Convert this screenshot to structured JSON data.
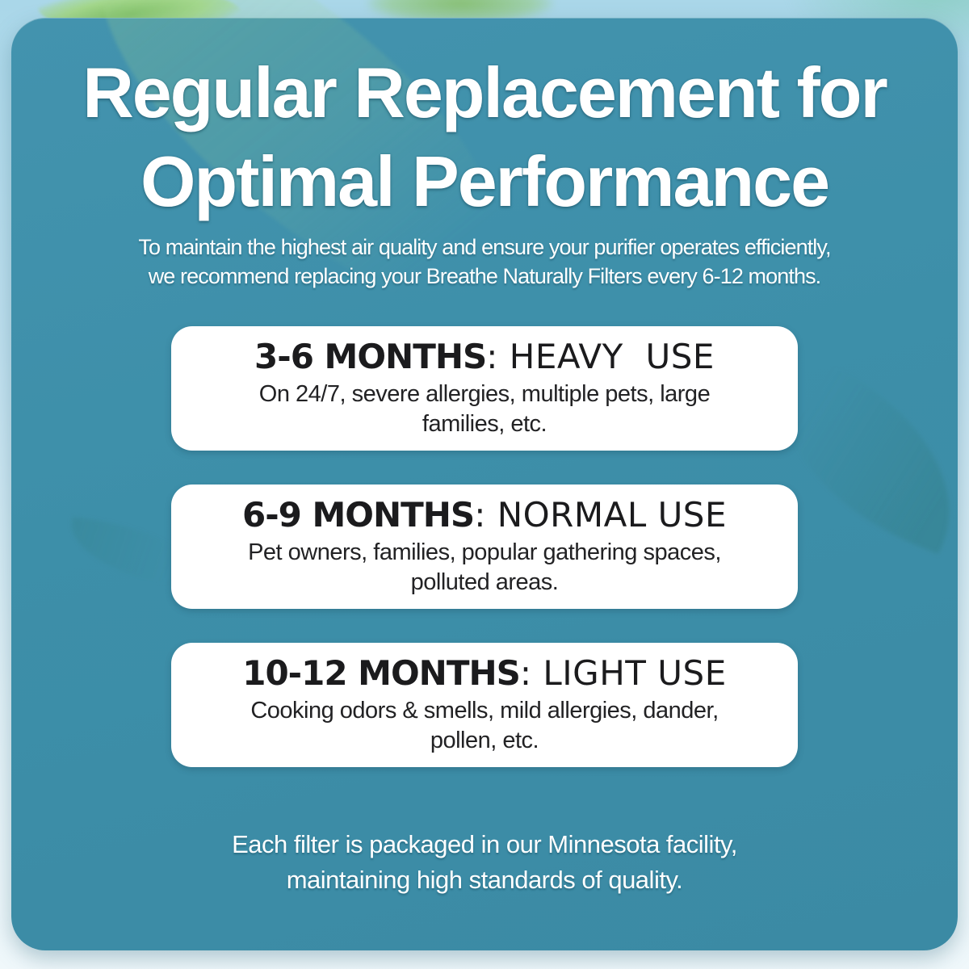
{
  "header": {
    "title_line1": "Regular Replacement for",
    "title_line2": "Optimal Performance",
    "subtitle_line1": "To maintain the highest air quality and ensure your purifier operates efficiently,",
    "subtitle_line2": "we recommend replacing your Breathe Naturally Filters every 6-12 months."
  },
  "cards": [
    {
      "period": "3-6 MONTHS",
      "usage": ": HEAVY  USE",
      "desc_line1": "On 24/7, severe allergies, multiple pets, large",
      "desc_line2": "families, etc."
    },
    {
      "period": "6-9 MONTHS",
      "usage": ": NORMAL USE",
      "desc_line1": "Pet owners, families, popular gathering spaces,",
      "desc_line2": "polluted areas."
    },
    {
      "period": "10-12 MONTHS",
      "usage": ": LIGHT USE",
      "desc_line1": "Cooking odors & smells, mild allergies, dander,",
      "desc_line2": "pollen, etc."
    }
  ],
  "footer": {
    "line1": "Each filter is packaged in our Minnesota facility,",
    "line2": "maintaining high standards of quality."
  },
  "decorations": {
    "leaf_icons": [
      {
        "name": "leaf-top-left-icon"
      },
      {
        "name": "leaf-top-center-icon"
      },
      {
        "name": "leaf-overlay-large-icon"
      },
      {
        "name": "leaf-overlay-right-icon"
      },
      {
        "name": "leaf-overlay-left-tip-icon"
      }
    ]
  },
  "colors": {
    "panel": "#3d8fa9",
    "background_top": "#aad7e9",
    "background_bottom": "#f0f8fb",
    "card_background": "#ffffff",
    "card_text": "#1b1b1d",
    "heading_text": "#ffffff",
    "leaf_green": "#8cc878"
  }
}
